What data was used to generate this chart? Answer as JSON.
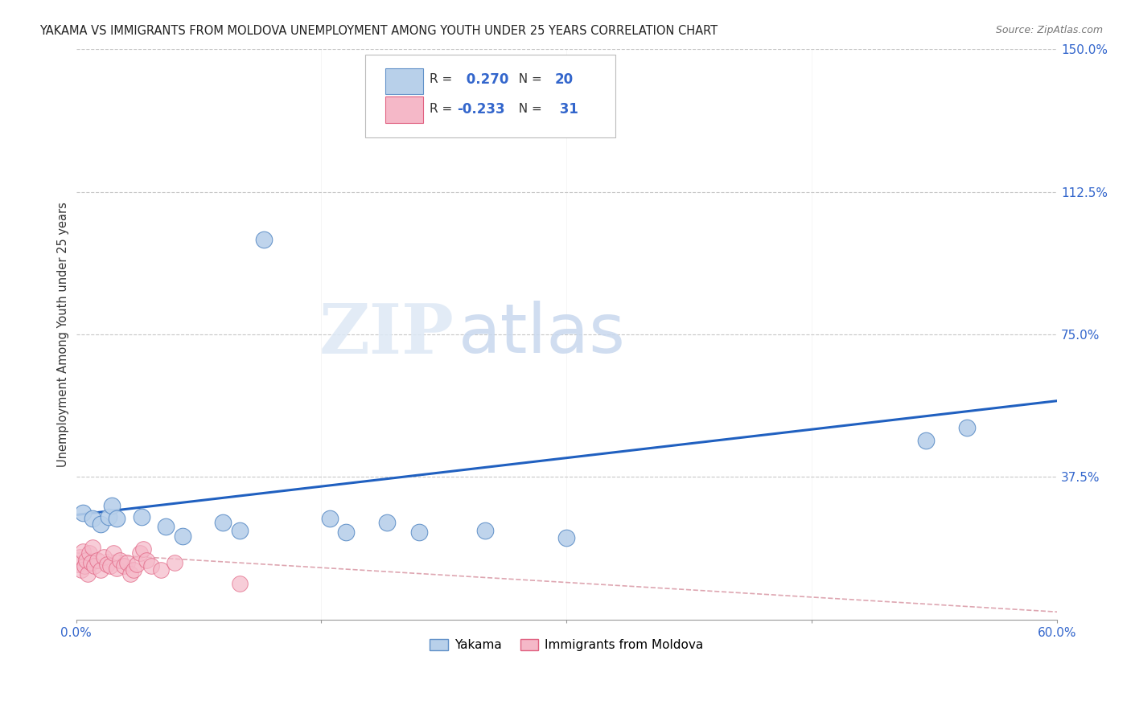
{
  "title": "YAKAMA VS IMMIGRANTS FROM MOLDOVA UNEMPLOYMENT AMONG YOUTH UNDER 25 YEARS CORRELATION CHART",
  "source": "Source: ZipAtlas.com",
  "ylabel": "Unemployment Among Youth under 25 years",
  "xlim": [
    0.0,
    0.6
  ],
  "ylim": [
    0.0,
    1.5
  ],
  "xticks": [
    0.0,
    0.15,
    0.3,
    0.45,
    0.6
  ],
  "yticks": [
    0.0,
    0.375,
    0.75,
    1.125,
    1.5
  ],
  "ytick_labels": [
    "",
    "37.5%",
    "75.0%",
    "112.5%",
    "150.0%"
  ],
  "xtick_labels": [
    "0.0%",
    "",
    "",
    "",
    "60.0%"
  ],
  "background_color": "#ffffff",
  "grid_color": "#c8c8c8",
  "watermark_zip": "ZIP",
  "watermark_atlas": "atlas",
  "legend_r1_label": "R = ",
  "legend_r1_val": " 0.270",
  "legend_n1_label": "N =",
  "legend_n1_val": "20",
  "legend_r2_label": "R =",
  "legend_r2_val": "-0.233",
  "legend_n2_label": "N = ",
  "legend_n2_val": "31",
  "yakama_color": "#b8d0ea",
  "moldova_color": "#f5b8c8",
  "yakama_edge": "#6090c8",
  "moldova_edge": "#e06080",
  "trend_blue": "#2060c0",
  "trend_pink": "#d08090",
  "yakama_x": [
    0.004,
    0.01,
    0.015,
    0.02,
    0.022,
    0.025,
    0.04,
    0.055,
    0.065,
    0.09,
    0.1,
    0.115,
    0.155,
    0.165,
    0.19,
    0.21,
    0.25,
    0.3,
    0.52,
    0.545
  ],
  "yakama_y": [
    0.28,
    0.265,
    0.25,
    0.27,
    0.3,
    0.265,
    0.27,
    0.245,
    0.22,
    0.255,
    0.235,
    1.0,
    0.265,
    0.23,
    0.255,
    0.23,
    0.235,
    0.215,
    0.47,
    0.505
  ],
  "moldova_x": [
    0.001,
    0.002,
    0.003,
    0.004,
    0.005,
    0.006,
    0.007,
    0.008,
    0.009,
    0.01,
    0.011,
    0.013,
    0.015,
    0.017,
    0.019,
    0.021,
    0.023,
    0.025,
    0.027,
    0.029,
    0.031,
    0.033,
    0.035,
    0.037,
    0.039,
    0.041,
    0.043,
    0.046,
    0.052,
    0.06,
    0.1
  ],
  "moldova_y": [
    0.145,
    0.165,
    0.13,
    0.18,
    0.14,
    0.155,
    0.12,
    0.175,
    0.15,
    0.19,
    0.14,
    0.155,
    0.13,
    0.165,
    0.145,
    0.14,
    0.175,
    0.135,
    0.155,
    0.14,
    0.15,
    0.12,
    0.13,
    0.145,
    0.175,
    0.185,
    0.155,
    0.14,
    0.13,
    0.15,
    0.095
  ],
  "blue_trend_x": [
    0.0,
    0.6
  ],
  "blue_trend_y": [
    0.275,
    0.575
  ],
  "pink_trend_x": [
    0.0,
    0.6
  ],
  "pink_trend_y": [
    0.175,
    0.02
  ]
}
